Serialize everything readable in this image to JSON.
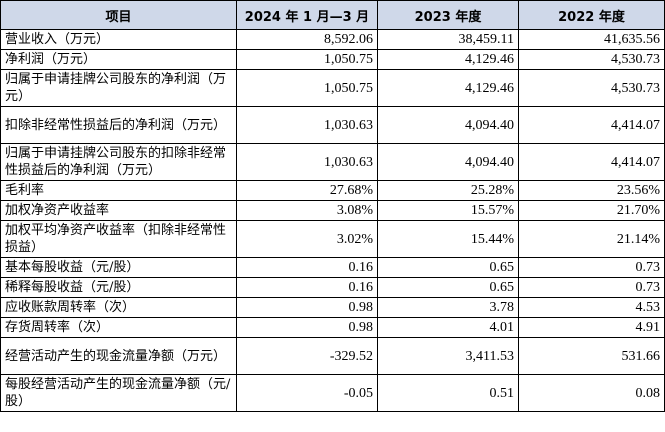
{
  "table": {
    "headers": [
      "项目",
      "2024 年 1 月—3 月",
      "2023 年度",
      "2022 年度"
    ],
    "rows": [
      {
        "label": "营业收入（万元）",
        "values": [
          "8,592.06",
          "38,459.11",
          "41,635.56"
        ]
      },
      {
        "label": "净利润（万元）",
        "values": [
          "1,050.75",
          "4,129.46",
          "4,530.73"
        ]
      },
      {
        "label": "归属于申请挂牌公司股东的净利润（万元）",
        "values": [
          "1,050.75",
          "4,129.46",
          "4,530.73"
        ]
      },
      {
        "label": "扣除非经常性损益后的净利润（万元）",
        "values": [
          "1,030.63",
          "4,094.40",
          "4,414.07"
        ]
      },
      {
        "label": "归属于申请挂牌公司股东的扣除非经常性损益后的净利润（万元）",
        "values": [
          "1,030.63",
          "4,094.40",
          "4,414.07"
        ]
      },
      {
        "label": "毛利率",
        "values": [
          "27.68%",
          "25.28%",
          "23.56%"
        ]
      },
      {
        "label": "加权净资产收益率",
        "values": [
          "3.08%",
          "15.57%",
          "21.70%"
        ]
      },
      {
        "label": "加权平均净资产收益率（扣除非经常性损益）",
        "values": [
          "3.02%",
          "15.44%",
          "21.14%"
        ]
      },
      {
        "label": "基本每股收益（元/股）",
        "values": [
          "0.16",
          "0.65",
          "0.73"
        ]
      },
      {
        "label": "稀释每股收益（元/股）",
        "values": [
          "0.16",
          "0.65",
          "0.73"
        ]
      },
      {
        "label": "应收账款周转率（次）",
        "values": [
          "0.98",
          "3.78",
          "4.53"
        ]
      },
      {
        "label": "存货周转率（次）",
        "values": [
          "0.98",
          "4.01",
          "4.91"
        ]
      },
      {
        "label": "经营活动产生的现金流量净额（万元）",
        "values": [
          "-329.52",
          "3,411.53",
          "531.66"
        ]
      },
      {
        "label": "每股经营活动产生的现金流量净额（元/股）",
        "values": [
          "-0.05",
          "0.51",
          "0.08"
        ]
      }
    ]
  }
}
